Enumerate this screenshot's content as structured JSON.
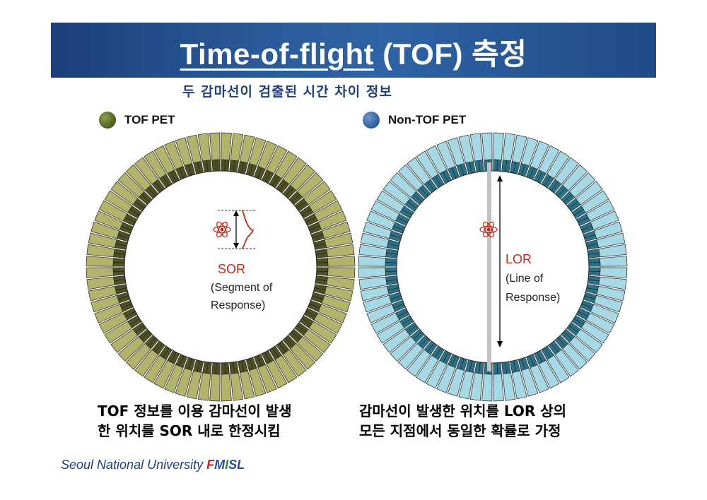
{
  "header": {
    "title_underlined": "Time-of-flight",
    "title_rest": " (TOF) 측정",
    "subtitle": "두 감마선이 검출된 시간 차이 정보"
  },
  "left": {
    "legend": "TOF PET",
    "sor_label": "SOR",
    "sor_desc_line1": "(Segment of",
    "sor_desc_line2": "Response)",
    "caption_line1": "TOF 정보를 이용 감마선이 발생",
    "caption_line2": "한 위치를 SOR 내로 한정시킴"
  },
  "right": {
    "legend": "Non-TOF PET",
    "lor_label": "LOR",
    "lor_desc_line1": "(Line of",
    "lor_desc_line2": "Response)",
    "caption_line1": "감마선이 발생한 위치를 LOR 상의",
    "caption_line2": "모든 지점에서 동일한 확률로 가정"
  },
  "footer": {
    "university": "Seoul National University ",
    "lab_f": "F",
    "lab_m": "M",
    "lab_i": "I",
    "lab_s": "S",
    "lab_l": "L"
  },
  "colors": {
    "tof_outer": "#b3b46c",
    "tof_inner": "#4d4f24",
    "nontof_outer": "#a6d8e6",
    "nontof_inner": "#2d6f84",
    "title_bar": "#2a5a99",
    "accent_red": "#c0281c"
  }
}
